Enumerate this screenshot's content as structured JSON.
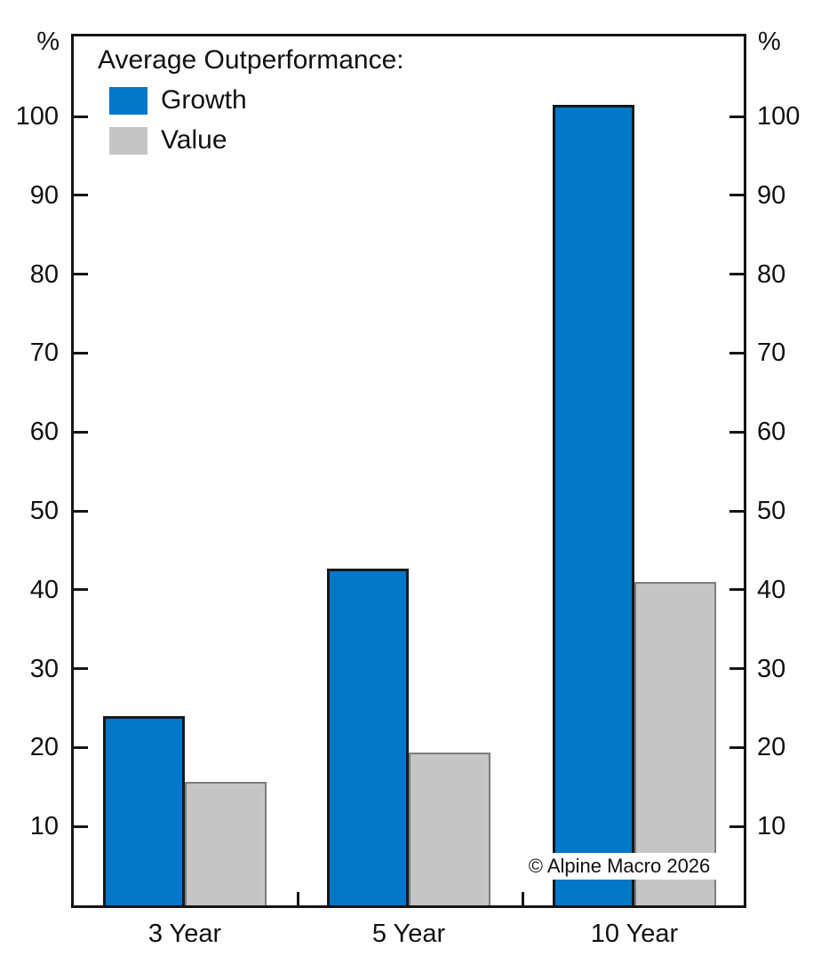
{
  "chart_data": {
    "type": "bar",
    "title": "Average Outperformance:",
    "axis_unit_label": "%",
    "categories": [
      "3 Year",
      "5 Year",
      "10 Year"
    ],
    "series": [
      {
        "name": "Growth",
        "color": "#0377c8",
        "border_color": "#14191e",
        "values": [
          24,
          42.7,
          101.5
        ]
      },
      {
        "name": "Value",
        "color": "#c5c5c5",
        "border_color": "#7d7d7d",
        "values": [
          15.7,
          19.4,
          41
        ]
      }
    ],
    "ylim": [
      0,
      110.5
    ],
    "yticks": [
      10,
      20,
      30,
      40,
      50,
      60,
      70,
      80,
      90,
      100
    ],
    "grid": false,
    "legend_position": "top-left",
    "dual_axis_tick_labels": true
  },
  "annotations": {
    "copyright": "© Alpine Macro 2026"
  }
}
